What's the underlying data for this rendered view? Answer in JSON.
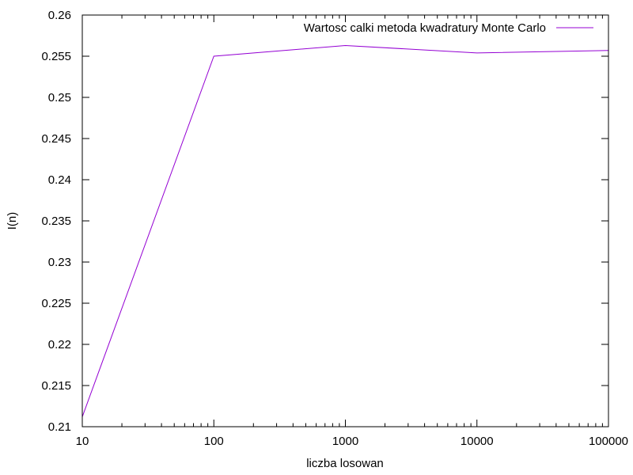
{
  "chart_data": {
    "type": "line",
    "x_scale": "log",
    "xlabel": "liczba losowan",
    "ylabel": "I(n)",
    "xlim": [
      10,
      100000
    ],
    "ylim": [
      0.21,
      0.26
    ],
    "x_ticks": [
      "10",
      "100",
      "1000",
      "10000",
      "100000"
    ],
    "y_ticks": [
      "0.21",
      "0.215",
      "0.22",
      "0.225",
      "0.23",
      "0.235",
      "0.24",
      "0.245",
      "0.25",
      "0.255",
      "0.26"
    ],
    "grid": false,
    "legend_position": "top-right",
    "series": [
      {
        "name": "Wartosc calki metoda kwadratury Monte Carlo",
        "color": "#9400d3",
        "x": [
          10,
          100,
          1000,
          10000,
          100000
        ],
        "y": [
          0.2112,
          0.255,
          0.2563,
          0.2554,
          0.2557
        ]
      }
    ]
  }
}
